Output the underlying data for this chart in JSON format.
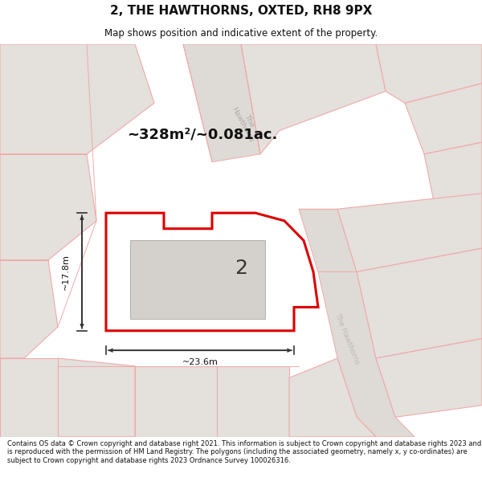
{
  "title_line1": "2, THE HAWTHORNS, OXTED, RH8 9PX",
  "title_line2": "Map shows position and indicative extent of the property.",
  "area_text": "~328m²/~0.081ac.",
  "dim_width": "~23.6m",
  "dim_height": "~17.8m",
  "label_number": "2",
  "footer_text": "Contains OS data © Crown copyright and database right 2021. This information is subject to Crown copyright and database rights 2023 and is reproduced with the permission of HM Land Registry. The polygons (including the associated geometry, namely x, y co-ordinates) are subject to Crown copyright and database rights 2023 Ordnance Survey 100026316.",
  "bg_color": "#f0eeeb",
  "plot_fill": "#ffffff",
  "building_fill": "#d4d0cc",
  "plot_edge_color": "#dd0000",
  "road_line_color": "#f0aaaa",
  "bg_poly_fill": "#e4e0dc",
  "road_fill": "#dedad5",
  "title_bg": "#ffffff",
  "footer_bg": "#ffffff"
}
